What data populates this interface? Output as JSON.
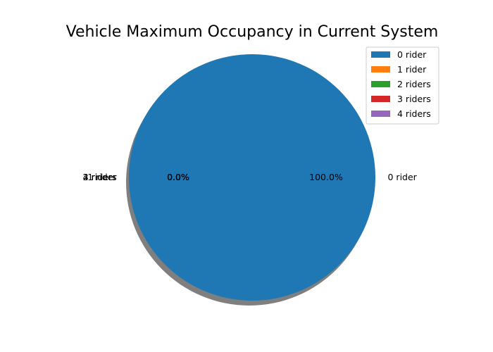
{
  "chart_data": {
    "type": "pie",
    "title": "Vehicle Maximum Occupancy in Current System",
    "categories": [
      "0 rider",
      "1 rider",
      "2 riders",
      "3 riders",
      "4 riders"
    ],
    "values": [
      100.0,
      0.0,
      0.0,
      0.0,
      0.0
    ],
    "percent_labels": [
      "100.0%",
      "0.0%",
      "0.0%",
      "0.0%",
      "0.0%"
    ],
    "colors": [
      "#1f77b4",
      "#ff7f0e",
      "#2ca02c",
      "#d62728",
      "#9467bd"
    ],
    "shadow": true,
    "legend": {
      "placement": "top-right",
      "entries": [
        "0 rider",
        "1 rider",
        "2 riders",
        "3 riders",
        "4 riders"
      ]
    }
  }
}
